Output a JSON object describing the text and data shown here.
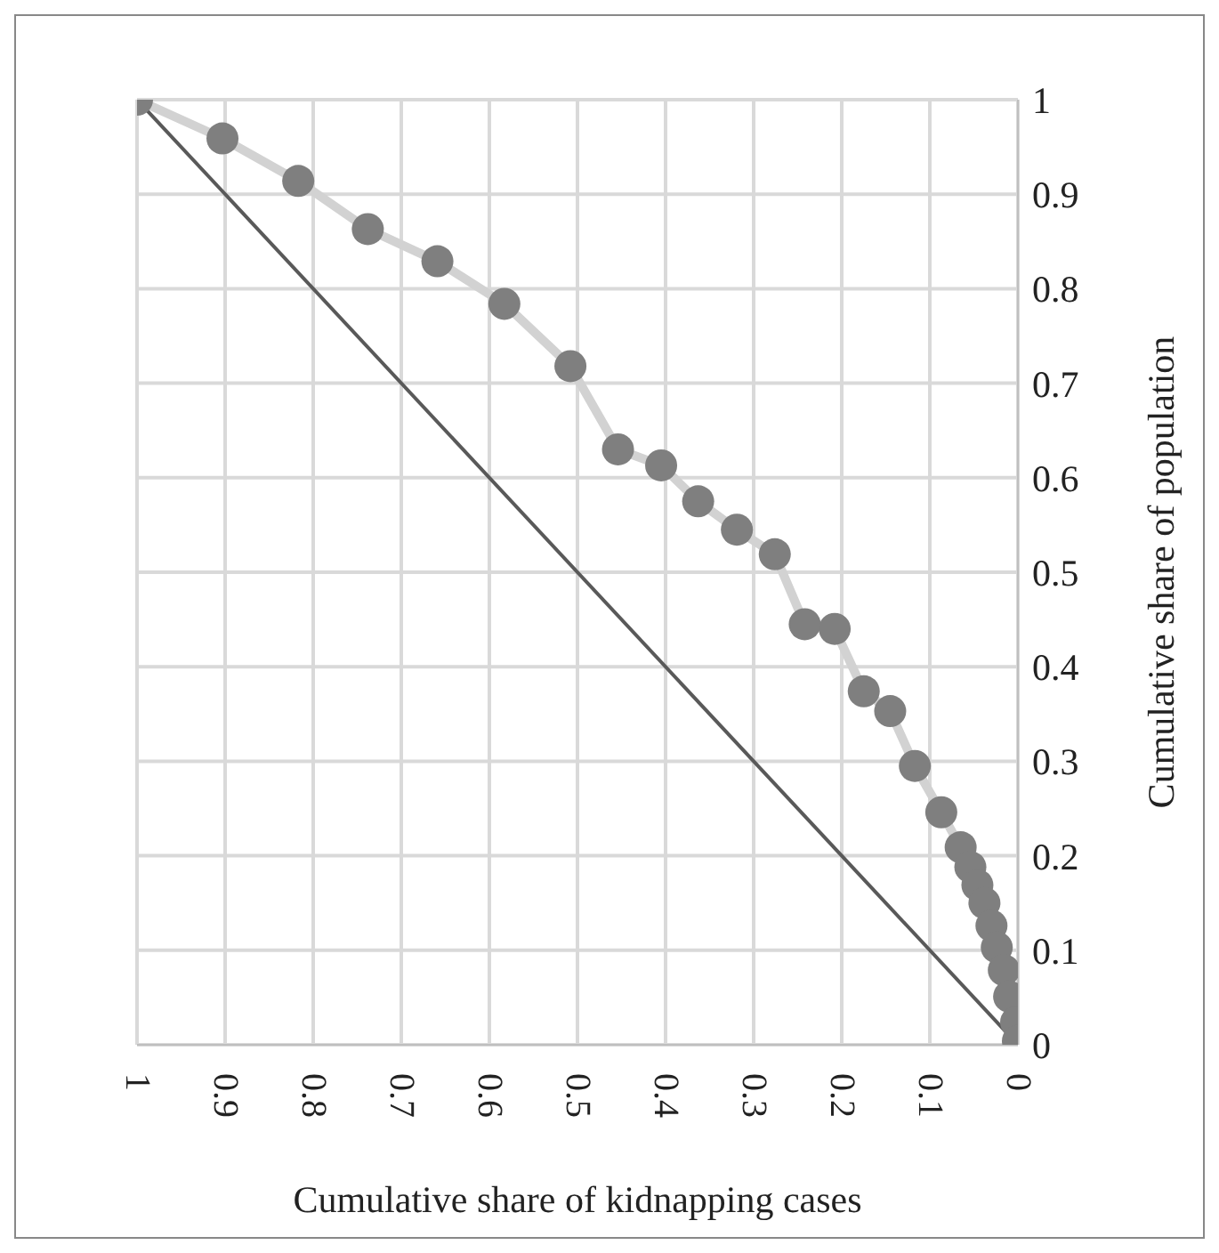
{
  "chart_data": {
    "type": "line",
    "xlabel": "Cumulative share of kidnapping cases",
    "ylabel": "Cumulative share of population",
    "xlim": [
      1,
      0
    ],
    "xticks": [
      1,
      0.9,
      0.8,
      0.7,
      0.6,
      0.5,
      0.4,
      0.3,
      0.2,
      0.1,
      0
    ],
    "ylim": [
      0,
      1
    ],
    "yticks": [
      0,
      0.1,
      0.2,
      0.3,
      0.4,
      0.5,
      0.6,
      0.7,
      0.8,
      0.9,
      1
    ],
    "grid": true,
    "legend": false,
    "series": [
      {
        "type": "line",
        "color": "#595959",
        "marker": "none",
        "x": [
          1,
          0
        ],
        "values": [
          1,
          0
        ]
      },
      {
        "type": "line",
        "color": "#7f7f7f",
        "marker": "circle",
        "x": [
          1,
          0.903,
          0.817,
          0.738,
          0.659,
          0.583,
          0.508,
          0.454,
          0.405,
          0.363,
          0.319,
          0.276,
          0.242,
          0.208,
          0.175,
          0.145,
          0.117,
          0.087,
          0.065,
          0.054,
          0.046,
          0.038,
          0.03,
          0.024,
          0.016,
          0.01,
          0.002,
          0
        ],
        "values": [
          1,
          0.959,
          0.914,
          0.863,
          0.829,
          0.784,
          0.718,
          0.63,
          0.613,
          0.575,
          0.545,
          0.519,
          0.445,
          0.44,
          0.374,
          0.353,
          0.295,
          0.246,
          0.209,
          0.188,
          0.169,
          0.15,
          0.126,
          0.103,
          0.079,
          0.051,
          0.024,
          0.004
        ]
      }
    ]
  }
}
